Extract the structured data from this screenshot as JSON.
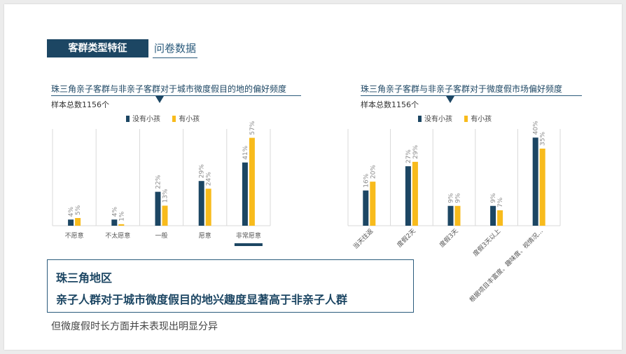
{
  "header": {
    "title": "客群类型特征",
    "subtitle": "问卷数据"
  },
  "colors": {
    "navy": "#1c4663",
    "yellow": "#f8bb1c",
    "grid": "#d9d9d9",
    "label": "#8a8a8a"
  },
  "chart_data": [
    {
      "type": "bar",
      "title": "珠三角亲子客群与非亲子客群对于城市微度假目的地的偏好频度",
      "sample": "样本总数1156个",
      "legend_position": "top",
      "categories": [
        "不愿意",
        "不太愿意",
        "一般",
        "愿意",
        "非常愿意"
      ],
      "highlight_category": "非常愿意",
      "series": [
        {
          "name": "没有小孩",
          "values": [
            4,
            4,
            22,
            29,
            41
          ],
          "labels": [
            "4%",
            "4%",
            "22%",
            "29%",
            "41%"
          ]
        },
        {
          "name": "有小孩",
          "values": [
            5,
            1,
            13,
            24,
            57
          ],
          "labels": [
            "5%",
            "1%",
            "13%",
            "24%",
            "57%"
          ]
        }
      ],
      "ylim": [
        0,
        60
      ]
    },
    {
      "type": "bar",
      "title": "珠三角亲子客群与非亲子客群对于微度假市场偏好频度",
      "sample": "样本总数1156个",
      "legend_position": "top",
      "categories": [
        "当天往返",
        "度假2天",
        "度假3天",
        "度假3天以上",
        "根据项目丰富度、趣味度、视情况..."
      ],
      "series": [
        {
          "name": "没有小孩",
          "values": [
            16,
            27,
            9,
            9,
            40
          ],
          "labels": [
            "16%",
            "27%",
            "9%",
            "9%",
            "40%"
          ]
        },
        {
          "name": "有小孩",
          "values": [
            20,
            29,
            9,
            7,
            35
          ],
          "labels": [
            "20%",
            "29%",
            "9%",
            "7%",
            "35%"
          ]
        }
      ],
      "ylim": [
        0,
        42
      ]
    }
  ],
  "conclusion": {
    "line1": "珠三角地区",
    "line2": "亲子人群对于城市微度假目的地兴趣度显著高于非亲子人群"
  },
  "note": "但微度假时长方面并未表现出明显分异"
}
